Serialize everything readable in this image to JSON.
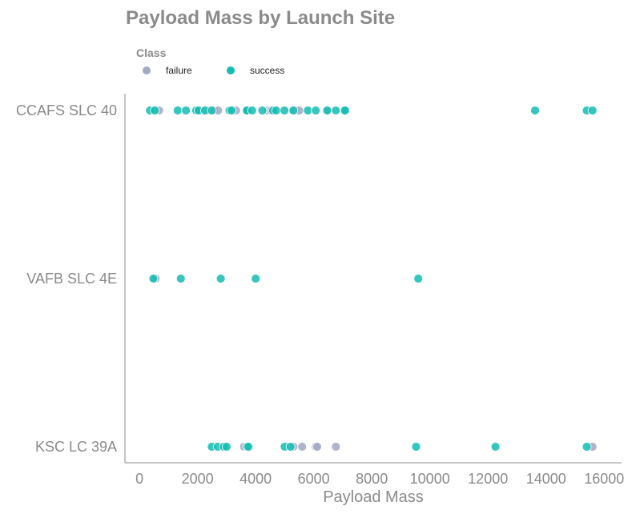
{
  "chart_data": {
    "type": "scatter",
    "title": "Payload Mass by Launch Site",
    "xlabel": "Payload Mass",
    "ylabel": "",
    "xlim": [
      -500,
      16600
    ],
    "xticks": [
      0,
      2000,
      4000,
      6000,
      8000,
      10000,
      12000,
      14000,
      16000
    ],
    "categories": [
      "CCAFS SLC 40",
      "VAFB SLC 4E",
      "KSC LC 39A"
    ],
    "grid": false,
    "legend": {
      "title": "Class",
      "placement": "top-left"
    },
    "series": [
      {
        "name": "failure",
        "color": "#a3a8c3",
        "points": [
          {
            "x": 500,
            "y": "CCAFS SLC 40"
          },
          {
            "x": 677,
            "y": "CCAFS SLC 40"
          },
          {
            "x": 2296,
            "y": "CCAFS SLC 40"
          },
          {
            "x": 2395,
            "y": "CCAFS SLC 40"
          },
          {
            "x": 2570,
            "y": "CCAFS SLC 40"
          },
          {
            "x": 2708,
            "y": "CCAFS SLC 40"
          },
          {
            "x": 3325,
            "y": "CCAFS SLC 40"
          },
          {
            "x": 4428,
            "y": "CCAFS SLC 40"
          },
          {
            "x": 4535,
            "y": "CCAFS SLC 40"
          },
          {
            "x": 5271,
            "y": "CCAFS SLC 40"
          },
          {
            "x": 5370,
            "y": "CCAFS SLC 40"
          },
          {
            "x": 5500,
            "y": "CCAFS SLC 40"
          },
          {
            "x": 6500,
            "y": "CCAFS SLC 40"
          },
          {
            "x": 553,
            "y": "VAFB SLC 4E"
          },
          {
            "x": 3600,
            "y": "KSC LC 39A"
          },
          {
            "x": 5300,
            "y": "KSC LC 39A"
          },
          {
            "x": 5600,
            "y": "KSC LC 39A"
          },
          {
            "x": 6070,
            "y": "KSC LC 39A"
          },
          {
            "x": 6120,
            "y": "KSC LC 39A"
          },
          {
            "x": 6761,
            "y": "KSC LC 39A"
          },
          {
            "x": 15600,
            "y": "KSC LC 39A"
          }
        ]
      },
      {
        "name": "success",
        "color": "#12bdb2",
        "points": [
          {
            "x": 362,
            "y": "CCAFS SLC 40"
          },
          {
            "x": 525,
            "y": "CCAFS SLC 40"
          },
          {
            "x": 1316,
            "y": "CCAFS SLC 40"
          },
          {
            "x": 1600,
            "y": "CCAFS SLC 40"
          },
          {
            "x": 1952,
            "y": "CCAFS SLC 40"
          },
          {
            "x": 2034,
            "y": "CCAFS SLC 40"
          },
          {
            "x": 2257,
            "y": "CCAFS SLC 40"
          },
          {
            "x": 2490,
            "y": "CCAFS SLC 40"
          },
          {
            "x": 3100,
            "y": "CCAFS SLC 40"
          },
          {
            "x": 3170,
            "y": "CCAFS SLC 40"
          },
          {
            "x": 3681,
            "y": "CCAFS SLC 40"
          },
          {
            "x": 3700,
            "y": "CCAFS SLC 40"
          },
          {
            "x": 3880,
            "y": "CCAFS SLC 40"
          },
          {
            "x": 4230,
            "y": "CCAFS SLC 40"
          },
          {
            "x": 4600,
            "y": "CCAFS SLC 40"
          },
          {
            "x": 4707,
            "y": "CCAFS SLC 40"
          },
          {
            "x": 4990,
            "y": "CCAFS SLC 40"
          },
          {
            "x": 5300,
            "y": "CCAFS SLC 40"
          },
          {
            "x": 5800,
            "y": "CCAFS SLC 40"
          },
          {
            "x": 6070,
            "y": "CCAFS SLC 40"
          },
          {
            "x": 6460,
            "y": "CCAFS SLC 40"
          },
          {
            "x": 6761,
            "y": "CCAFS SLC 40"
          },
          {
            "x": 7060,
            "y": "CCAFS SLC 40"
          },
          {
            "x": 7076,
            "y": "CCAFS SLC 40"
          },
          {
            "x": 13620,
            "y": "CCAFS SLC 40"
          },
          {
            "x": 15400,
            "y": "CCAFS SLC 40"
          },
          {
            "x": 15600,
            "y": "CCAFS SLC 40"
          },
          {
            "x": 475,
            "y": "VAFB SLC 4E"
          },
          {
            "x": 1425,
            "y": "VAFB SLC 4E"
          },
          {
            "x": 2800,
            "y": "VAFB SLC 4E"
          },
          {
            "x": 4000,
            "y": "VAFB SLC 4E"
          },
          {
            "x": 9600,
            "y": "VAFB SLC 4E"
          },
          {
            "x": 2490,
            "y": "KSC LC 39A"
          },
          {
            "x": 2695,
            "y": "KSC LC 39A"
          },
          {
            "x": 2900,
            "y": "KSC LC 39A"
          },
          {
            "x": 3000,
            "y": "KSC LC 39A"
          },
          {
            "x": 3700,
            "y": "KSC LC 39A"
          },
          {
            "x": 3750,
            "y": "KSC LC 39A"
          },
          {
            "x": 5000,
            "y": "KSC LC 39A"
          },
          {
            "x": 5200,
            "y": "KSC LC 39A"
          },
          {
            "x": 9525,
            "y": "KSC LC 39A"
          },
          {
            "x": 12259,
            "y": "KSC LC 39A"
          },
          {
            "x": 15400,
            "y": "KSC LC 39A"
          }
        ]
      }
    ]
  }
}
